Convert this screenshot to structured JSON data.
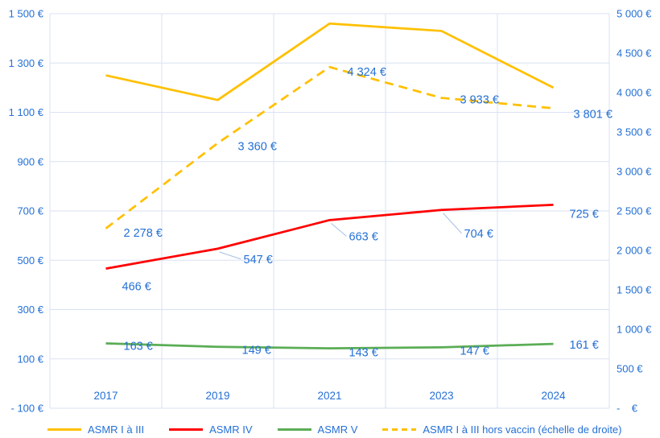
{
  "colors": {
    "text_blue": "#2470D6",
    "grid": "#D9E2F3",
    "leader": "#A7BFE3",
    "asmr_i_iii": "#FFC000",
    "asmr_iv": "#FF0000",
    "asmr_v": "#5BAD56",
    "asmr_i_iii_hors_vaccin": "#FFC000"
  },
  "chart_data": {
    "type": "line",
    "title": "",
    "grid": true,
    "legend_position": "bottom",
    "categories": [
      "2017",
      "2019",
      "2021",
      "2023",
      "2024"
    ],
    "left_axis": {
      "min": -100,
      "max": 1500,
      "step": 200,
      "tick_labels": [
        "- 100 €",
        "100 €",
        "300 €",
        "500 €",
        "700 €",
        "900 €",
        "1 100 €",
        "1 300 €",
        "1 500 €"
      ]
    },
    "right_axis": {
      "min": 0,
      "max": 5000,
      "step": 500,
      "tick_labels": [
        "-    €",
        "500 €",
        "1 000 €",
        "1 500 €",
        "2 000 €",
        "2 500 €",
        "3 000 €",
        "3 500 €",
        "4 000 €",
        "4 500 €",
        "5 000 €"
      ]
    },
    "series": [
      {
        "name": "ASMR I à III",
        "axis": "left",
        "dash": false,
        "color_key": "asmr_i_iii",
        "values": [
          1250,
          1150,
          1460,
          1430,
          1200
        ],
        "labels": null,
        "label_offsets": null,
        "leaders": null
      },
      {
        "name": "ASMR IV",
        "axis": "left",
        "dash": false,
        "color_key": "asmr_iv",
        "values": [
          466,
          547,
          663,
          704,
          725
        ],
        "labels": [
          "466 €",
          "547 €",
          "663 €",
          "704 €",
          "725 €"
        ],
        "label_offsets": [
          [
            20,
            22
          ],
          [
            32,
            13
          ],
          [
            24,
            20
          ],
          [
            28,
            29
          ],
          [
            20,
            11
          ]
        ],
        "leaders": [
          false,
          true,
          true,
          true,
          false
        ]
      },
      {
        "name": "ASMR V",
        "axis": "left",
        "dash": false,
        "color_key": "asmr_v",
        "values": [
          163,
          149,
          143,
          147,
          161
        ],
        "labels": [
          "163 €",
          "149 €",
          "143 €",
          "147 €",
          "161 €"
        ],
        "label_offsets": [
          [
            22,
            3
          ],
          [
            30,
            4
          ],
          [
            24,
            5
          ],
          [
            23,
            4
          ],
          [
            20,
            1
          ]
        ],
        "leaders": null
      },
      {
        "name": "ASMR I à III hors vaccin (échelle de droite)",
        "axis": "right",
        "dash": true,
        "color_key": "asmr_i_iii_hors_vaccin",
        "values": [
          2278,
          3360,
          4324,
          3933,
          3801
        ],
        "labels": [
          "2 278 €",
          "3 360 €",
          "4 324 €",
          "3 933 €",
          "3 801 €"
        ],
        "label_offsets": [
          [
            22,
            5
          ],
          [
            25,
            4
          ],
          [
            22,
            6
          ],
          [
            23,
            2
          ],
          [
            25,
            7
          ]
        ],
        "leaders": null
      }
    ]
  }
}
